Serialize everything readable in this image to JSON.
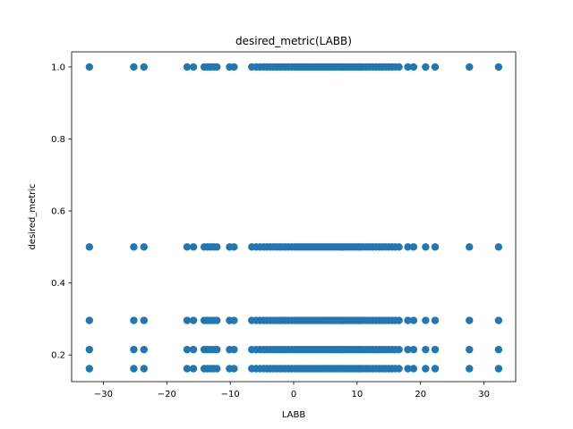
{
  "chart_data": {
    "type": "scatter",
    "title": "desired_metric(LABB)",
    "xlabel": "LABB",
    "ylabel": "desired_metric",
    "xlim": [
      -35,
      35
    ],
    "ylim": [
      0.126,
      1.042
    ],
    "xticks": [
      -30,
      -20,
      -10,
      0,
      10,
      20,
      30
    ],
    "yticks": [
      0.2,
      0.4,
      0.6,
      0.8,
      1.0
    ],
    "xtick_labels": [
      "−30",
      "−20",
      "−10",
      "0",
      "10",
      "20",
      "30"
    ],
    "ytick_labels": [
      "0.2",
      "0.4",
      "0.6",
      "0.8",
      "1.0"
    ],
    "grid": false,
    "marker_color": "#1f77b4",
    "levels": [
      1.0,
      0.5,
      0.296,
      0.215,
      0.162
    ],
    "x": [
      -32.2,
      -25.2,
      -23.6,
      -16.8,
      -15.8,
      -14.1,
      -13.6,
      -13.1,
      -12.6,
      -12.1,
      -10.1,
      -9.4,
      -6.6,
      -5.9,
      -5.3,
      -4.7,
      -4.2,
      -3.7,
      -3.2,
      -2.7,
      -2.2,
      -1.8,
      -1.3,
      -0.8,
      -0.3,
      0.2,
      0.6,
      1.0,
      1.4,
      1.8,
      2.2,
      2.6,
      3.0,
      3.4,
      3.8,
      4.2,
      4.6,
      5.0,
      5.4,
      5.8,
      6.2,
      6.6,
      7.0,
      7.4,
      7.8,
      8.2,
      8.6,
      9.0,
      9.4,
      9.8,
      10.2,
      10.6,
      11.0,
      11.5,
      12.0,
      12.5,
      13.0,
      13.5,
      14.0,
      14.5,
      15.0,
      15.5,
      16.0,
      16.6,
      18.0,
      18.9,
      20.8,
      22.3,
      27.7,
      32.3
    ]
  }
}
